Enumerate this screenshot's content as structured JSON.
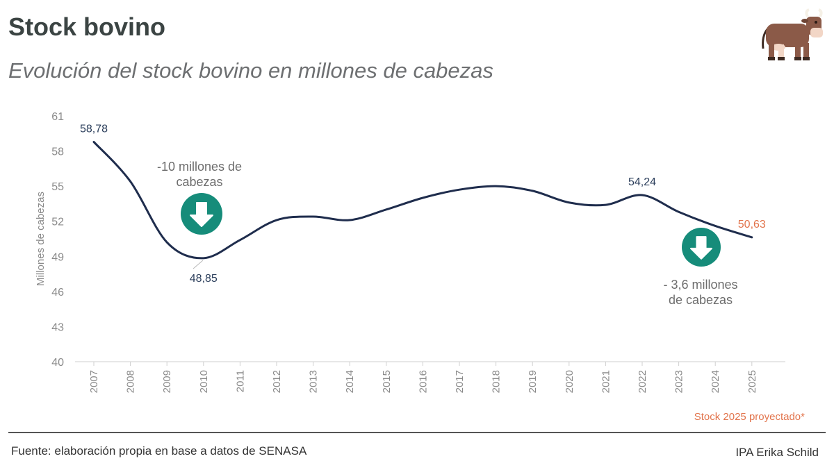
{
  "header": {
    "title": "Stock bovino",
    "subtitle": "Evolución del stock bovino en millones de cabezas"
  },
  "icons": {
    "cow": "cow-icon",
    "down_arrow": "arrow-down-icon"
  },
  "colors": {
    "line": "#1f2d4d",
    "label": "#2b3e5b",
    "highlight": "#e2744c",
    "badge": "#168c7a",
    "axis_text": "#8a8a8a",
    "annotation": "#6d6d6d"
  },
  "chart_data": {
    "type": "line",
    "title": "",
    "ylabel": "Millones de cabezas",
    "xlabel": "",
    "ylim": [
      40,
      61
    ],
    "yticks": [
      40,
      43,
      46,
      49,
      52,
      55,
      58,
      61
    ],
    "ytick_labels": [
      "40",
      "43",
      "46",
      "49",
      "52",
      "55",
      "58",
      "61"
    ],
    "categories": [
      "2007",
      "2008",
      "2009",
      "2010",
      "2011",
      "2012",
      "2013",
      "2014",
      "2015",
      "2016",
      "2017",
      "2018",
      "2019",
      "2020",
      "2021",
      "2022",
      "2023",
      "2024",
      "2025"
    ],
    "series": [
      {
        "values": [
          58.78,
          55.4,
          50.2,
          48.85,
          50.4,
          52.1,
          52.4,
          52.1,
          53.0,
          54.0,
          54.7,
          55.0,
          54.6,
          53.6,
          53.4,
          54.24,
          52.8,
          51.6,
          50.63
        ]
      }
    ],
    "data_labels": [
      {
        "index": 0,
        "text": "58,78",
        "highlight": false
      },
      {
        "index": 3,
        "text": "48,85",
        "highlight": false
      },
      {
        "index": 15,
        "text": "54,24",
        "highlight": false
      },
      {
        "index": 18,
        "text": "50,63",
        "highlight": true
      }
    ],
    "annotations": [
      {
        "line1": "-10 millones de",
        "line2": "cabezas"
      },
      {
        "line1": "- 3,6 millones",
        "line2": "de cabezas"
      }
    ],
    "grid": false,
    "legend": "none"
  },
  "footer": {
    "note": "Stock 2025 proyectado*",
    "source": "Fuente: elaboración propia en base a datos de SENASA",
    "credit": "IPA Erika Schild"
  }
}
